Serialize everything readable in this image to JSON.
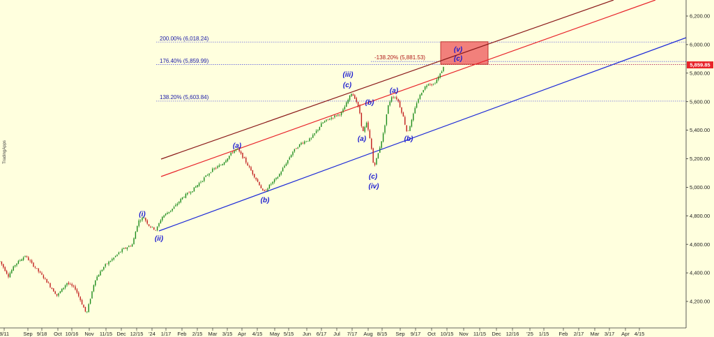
{
  "chart_data": {
    "type": "candlestick",
    "watermark": "TradingApps",
    "y_axis": {
      "side": "right",
      "ylim": [
        4050,
        6300
      ],
      "ticks": [
        4200,
        4400,
        4600,
        4800,
        5000,
        5200,
        5400,
        5600,
        5800,
        6000,
        6200
      ],
      "tick_labels": [
        "4,200.00",
        "4,400.00",
        "4,600.00",
        "4,800.00",
        "5,000.00",
        "5,200.00",
        "5,400.00",
        "5,600.00",
        "5,800.00",
        "6,000.00",
        "6,200.00"
      ]
    },
    "x_axis": {
      "tick_labels": [
        "8/11",
        "Sep",
        "9/18",
        "Oct",
        "10/16",
        "Nov",
        "11/15",
        "Dec",
        "12/15",
        "'24",
        "1/17",
        "Feb",
        "2/15",
        "Mar",
        "3/15",
        "Apr",
        "4/15",
        "May",
        "5/15",
        "Jun",
        "6/17",
        "Jul",
        "7/17",
        "Aug",
        "8/15",
        "Sep",
        "9/17",
        "Oct",
        "10/15",
        "Nov",
        "11/15",
        "Dec",
        "12/16",
        "'25",
        "1/15",
        "Feb",
        "2/17",
        "Mar",
        "3/17",
        "Apr",
        "4/15"
      ]
    },
    "current_price": {
      "value": 5859.85,
      "label": "5,859.85",
      "color": "#e8232a"
    },
    "fib_levels": [
      {
        "label": "200.00% (6,018.24)",
        "value": 6018.24
      },
      {
        "label": "176.40% (5,859.99)",
        "value": 5859.99
      },
      {
        "label": "138.20% (5,603.84)",
        "value": 5603.84
      }
    ],
    "fib_extension": {
      "label": "-138.20% (5,881.53)",
      "value": 5881.53
    },
    "target_zone": {
      "low": 5862,
      "high": 6020,
      "color": "#f06a6a"
    },
    "channel_lines": [
      {
        "name": "upper",
        "color": "#8b1a1a"
      },
      {
        "name": "middle",
        "color": "#e8232a"
      },
      {
        "name": "lower",
        "color": "#1e2bd8"
      }
    ],
    "wave_labels": [
      {
        "text": "(i)"
      },
      {
        "text": "(ii)"
      },
      {
        "text": "(a)"
      },
      {
        "text": "(b)"
      },
      {
        "text": "(iii)"
      },
      {
        "text": "(c)"
      },
      {
        "text": "(b)"
      },
      {
        "text": "(a)"
      },
      {
        "text": "(c)"
      },
      {
        "text": "(iv)"
      },
      {
        "text": "(a)"
      },
      {
        "text": "(b)"
      },
      {
        "text": "(v)"
      },
      {
        "text": "(c)"
      }
    ],
    "candle_color_up": "#1a8a1a",
    "candle_color_down": "#c01a1a"
  }
}
